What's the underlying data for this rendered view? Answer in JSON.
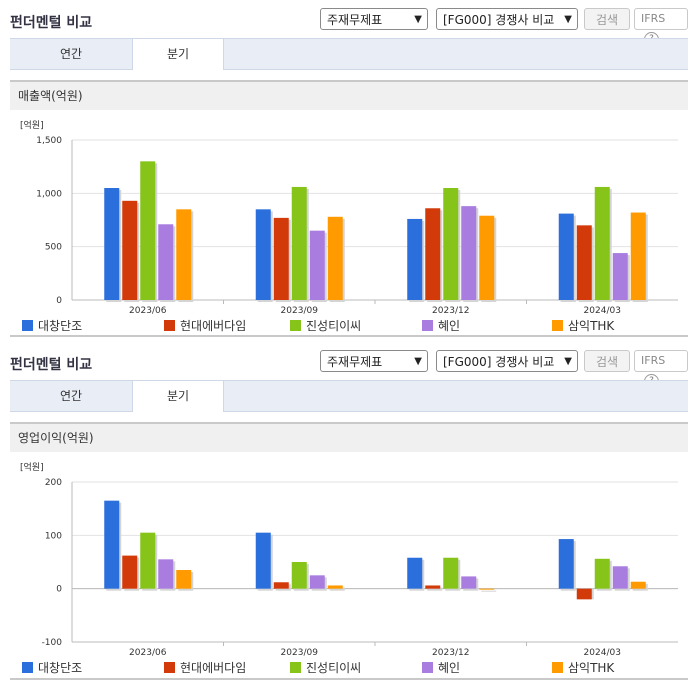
{
  "panels": [
    {
      "title": "펀더멘털 비교",
      "select1": "주재무제표",
      "select2": "[FG000] 경쟁사 비교",
      "search_label": "검색",
      "ifrs_label": "IFRS",
      "ifrs_help": "?",
      "tabs": [
        {
          "label": "연간",
          "active": false
        },
        {
          "label": "분기",
          "active": true
        }
      ],
      "subtitle": "매출액(억원)"
    },
    {
      "title": "펀더멘털 비교",
      "select1": "주재무제표",
      "select2": "[FG000] 경쟁사 비교",
      "search_label": "검색",
      "ifrs_label": "IFRS",
      "ifrs_help": "?",
      "tabs": [
        {
          "label": "연간",
          "active": false
        },
        {
          "label": "분기",
          "active": true
        }
      ],
      "subtitle": "영업이익(억원)"
    }
  ],
  "colors": [
    "#2a6fdb",
    "#d23a0a",
    "#86c41a",
    "#a97de0",
    "#ff9a00"
  ],
  "chart_data": [
    {
      "type": "bar",
      "unit_label": "[억원]",
      "categories": [
        "2023/06",
        "2023/09",
        "2023/12",
        "2024/03"
      ],
      "ylim": [
        0,
        1500
      ],
      "yticks": [
        0,
        500,
        1000,
        1500
      ],
      "ytick_labels": [
        "0",
        "500",
        "1,000",
        "1,500"
      ],
      "grid": true,
      "legend": "bottom",
      "series": [
        {
          "name": "대창단조",
          "values": [
            1050,
            850,
            760,
            810
          ]
        },
        {
          "name": "현대에버다임",
          "values": [
            930,
            770,
            860,
            700
          ]
        },
        {
          "name": "진성티이씨",
          "values": [
            1300,
            1060,
            1050,
            1060
          ]
        },
        {
          "name": "혜인",
          "values": [
            710,
            650,
            880,
            440
          ]
        },
        {
          "name": "삼익THK",
          "values": [
            850,
            780,
            790,
            820
          ]
        }
      ]
    },
    {
      "type": "bar",
      "unit_label": "[억원]",
      "categories": [
        "2023/06",
        "2023/09",
        "2023/12",
        "2024/03"
      ],
      "ylim": [
        -100,
        200
      ],
      "yticks": [
        -100,
        0,
        100,
        200
      ],
      "ytick_labels": [
        "-100",
        "0",
        "100",
        "200"
      ],
      "grid": true,
      "legend": "bottom",
      "series": [
        {
          "name": "대창단조",
          "values": [
            165,
            105,
            58,
            93
          ]
        },
        {
          "name": "현대에버다임",
          "values": [
            62,
            12,
            6,
            -20
          ]
        },
        {
          "name": "진성티이씨",
          "values": [
            105,
            50,
            58,
            56
          ]
        },
        {
          "name": "혜인",
          "values": [
            55,
            25,
            23,
            42
          ]
        },
        {
          "name": "삼익THK",
          "values": [
            35,
            6,
            0,
            13
          ]
        }
      ]
    }
  ]
}
